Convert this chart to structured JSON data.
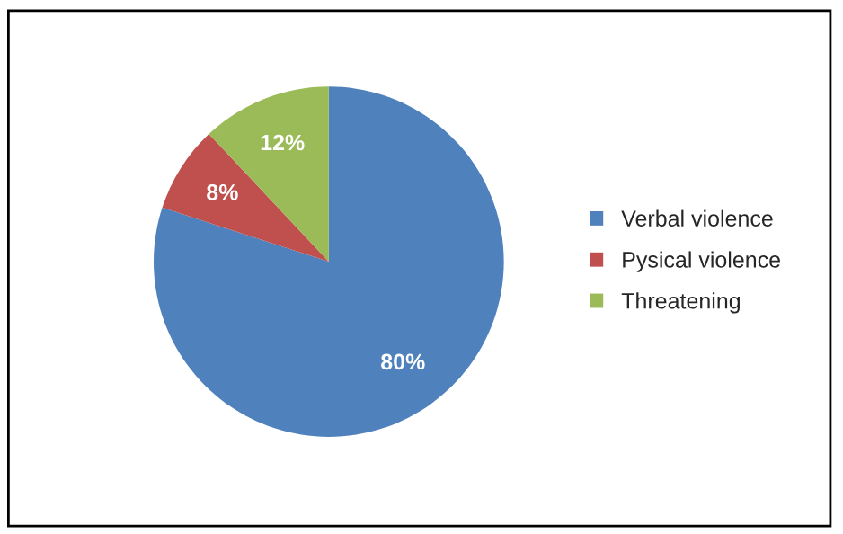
{
  "chart_data": {
    "type": "pie",
    "categories": [
      "Verbal violence",
      "Pysical violence",
      "Threatening"
    ],
    "values": [
      80,
      8,
      12
    ],
    "colors": [
      "#4f81bd",
      "#c0504d",
      "#9bbb59"
    ],
    "value_labels": [
      "80%",
      "8%",
      "12%"
    ],
    "legend": "right"
  }
}
